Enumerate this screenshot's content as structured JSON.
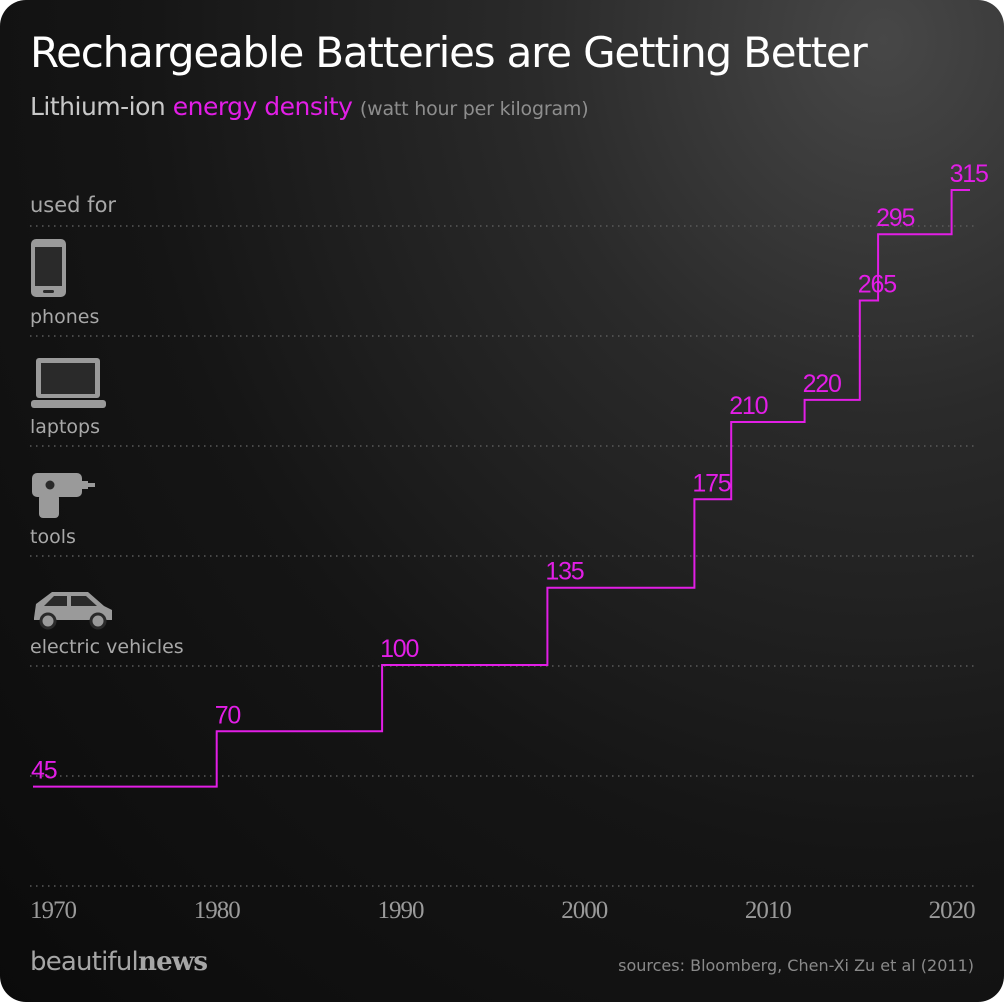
{
  "header": {
    "title": "Rechargeable Batteries are Getting Better",
    "subtitle_prefix": "Lithium-ion",
    "subtitle_accent": "energy density",
    "subtitle_unit": "(watt hour per kilogram)"
  },
  "used_for": {
    "heading": "used for",
    "items": [
      {
        "label": "phones",
        "icon": "phone-icon"
      },
      {
        "label": "laptops",
        "icon": "laptop-icon"
      },
      {
        "label": "tools",
        "icon": "drill-icon"
      },
      {
        "label": "electric vehicles",
        "icon": "car-icon"
      }
    ]
  },
  "chart_data": {
    "type": "line",
    "step": true,
    "title": "Rechargeable Batteries are Getting Better",
    "subtitle": "Lithium-ion energy density (watt hour per kilogram)",
    "series": [
      {
        "points": [
          {
            "x": 1970,
            "y": 45
          },
          {
            "x": 1980,
            "y": 70
          },
          {
            "x": 1989,
            "y": 100
          },
          {
            "x": 1998,
            "y": 135
          },
          {
            "x": 2006,
            "y": 175
          },
          {
            "x": 2008,
            "y": 210
          },
          {
            "x": 2012,
            "y": 220
          },
          {
            "x": 2015,
            "y": 265
          },
          {
            "x": 2016,
            "y": 295
          },
          {
            "x": 2018,
            "y": 295
          },
          {
            "x": 2020,
            "y": 315
          }
        ],
        "labels": [
          {
            "x": 1970,
            "text": "45"
          },
          {
            "x": 1980,
            "text": "70"
          },
          {
            "x": 1989,
            "text": "100"
          },
          {
            "x": 1998,
            "text": "135"
          },
          {
            "x": 2006,
            "text": "175"
          },
          {
            "x": 2008,
            "text": "210"
          },
          {
            "x": 2012,
            "text": "220"
          },
          {
            "x": 2015,
            "text": "265"
          },
          {
            "x": 2016,
            "text": "295"
          },
          {
            "x": 2020,
            "text": "315"
          }
        ],
        "end_x": 2021
      }
    ],
    "x_ticks": [
      "1970",
      "1980",
      "1990",
      "2000",
      "2010",
      "2020"
    ],
    "xlim": [
      1970,
      2021
    ],
    "ylim": [
      0,
      315
    ],
    "grid": true
  },
  "colors": {
    "accent": "#e21ee6",
    "background": "#141414",
    "text": "#ffffff",
    "muted": "#8e8e8e"
  },
  "footer": {
    "brand_light": "beautiful",
    "brand_bold": "news",
    "sources": "sources: Bloomberg, Chen-Xi Zu et al (2011)"
  }
}
